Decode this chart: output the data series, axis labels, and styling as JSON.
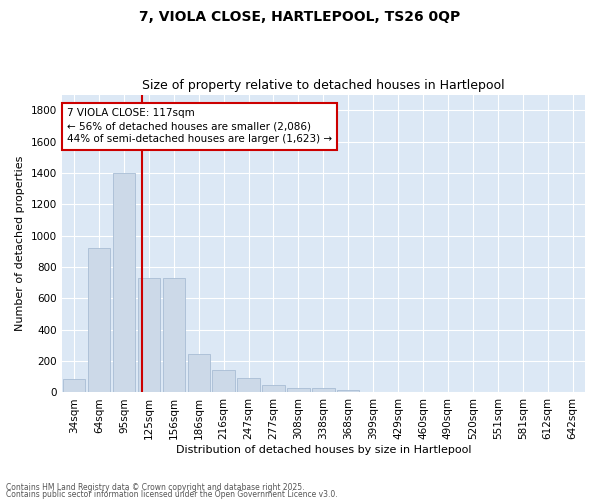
{
  "title": "7, VIOLA CLOSE, HARTLEPOOL, TS26 0QP",
  "subtitle": "Size of property relative to detached houses in Hartlepool",
  "xlabel": "Distribution of detached houses by size in Hartlepool",
  "ylabel": "Number of detached properties",
  "categories": [
    "34sqm",
    "64sqm",
    "95sqm",
    "125sqm",
    "156sqm",
    "186sqm",
    "216sqm",
    "247sqm",
    "277sqm",
    "308sqm",
    "338sqm",
    "368sqm",
    "399sqm",
    "429sqm",
    "460sqm",
    "490sqm",
    "520sqm",
    "551sqm",
    "581sqm",
    "612sqm",
    "642sqm"
  ],
  "values": [
    85,
    920,
    1400,
    730,
    730,
    245,
    145,
    93,
    50,
    30,
    30,
    15,
    0,
    0,
    0,
    5,
    0,
    0,
    0,
    0,
    0
  ],
  "bar_color": "#ccd9e8",
  "bar_edge_color": "#a8bdd4",
  "vline_color": "#cc0000",
  "annotation_text": "7 VIOLA CLOSE: 117sqm\n← 56% of detached houses are smaller (2,086)\n44% of semi-detached houses are larger (1,623) →",
  "annotation_box_color": "#ffffff",
  "annotation_box_edge": "#cc0000",
  "ylim": [
    0,
    1900
  ],
  "yticks": [
    0,
    200,
    400,
    600,
    800,
    1000,
    1200,
    1400,
    1600,
    1800
  ],
  "bg_color": "#dce8f5",
  "fig_bg_color": "#ffffff",
  "footer1": "Contains HM Land Registry data © Crown copyright and database right 2025.",
  "footer2": "Contains public sector information licensed under the Open Government Licence v3.0.",
  "title_fontsize": 10,
  "subtitle_fontsize": 9,
  "xlabel_fontsize": 8,
  "ylabel_fontsize": 8,
  "tick_fontsize": 7.5,
  "annot_fontsize": 7.5
}
